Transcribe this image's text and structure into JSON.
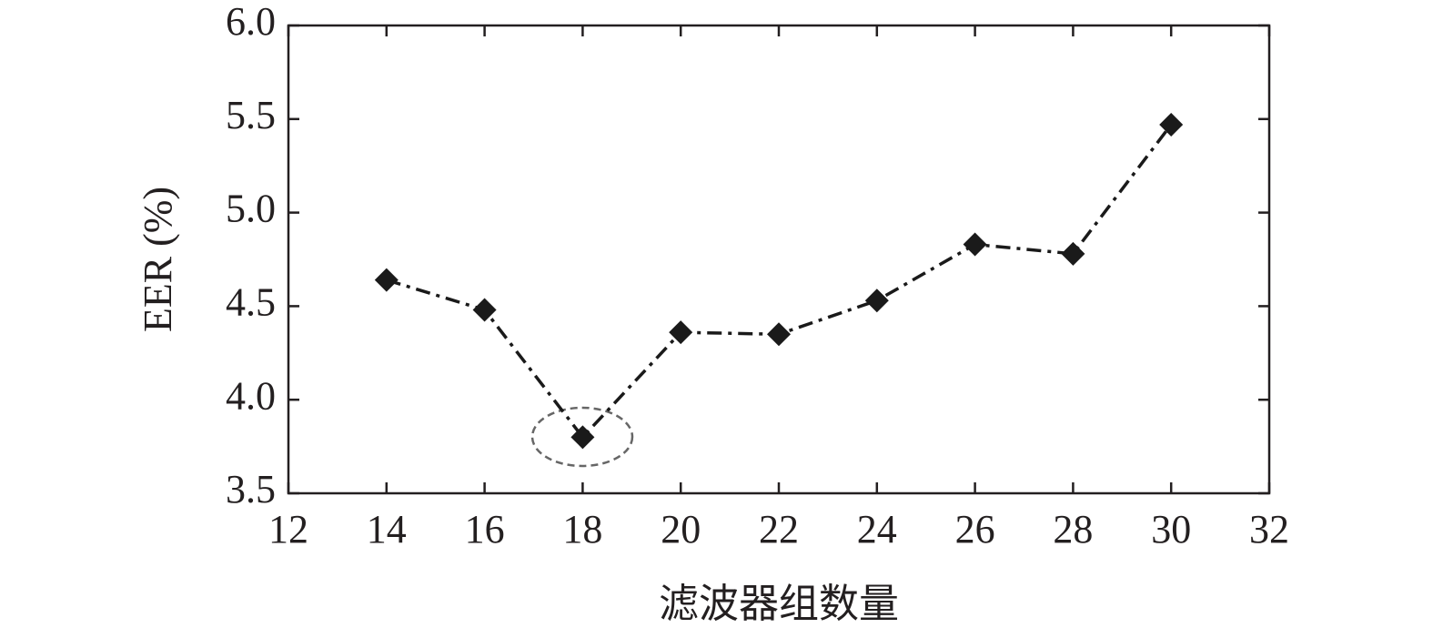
{
  "chart_data": {
    "type": "line",
    "x_label": "滤波器组数量",
    "y_label": "EER (%)",
    "x": [
      14,
      16,
      18,
      20,
      22,
      24,
      26,
      28,
      30
    ],
    "series": [
      {
        "color": "#1a1a1a",
        "values": [
          4.64,
          4.48,
          3.8,
          4.36,
          4.35,
          4.53,
          4.83,
          4.78,
          5.47
        ]
      }
    ],
    "xlim": [
      12,
      32
    ],
    "xticks": [
      12,
      14,
      16,
      18,
      20,
      22,
      24,
      26,
      28,
      30,
      32
    ],
    "ylim": [
      3.5,
      6.0
    ],
    "yticks": [
      3.5,
      {
        "value": 4,
        "label": "4.0"
      },
      4.5,
      {
        "value": 5,
        "label": "5.0"
      },
      5.5,
      {
        "value": 6,
        "label": "6.0"
      }
    ],
    "grid": false
  }
}
